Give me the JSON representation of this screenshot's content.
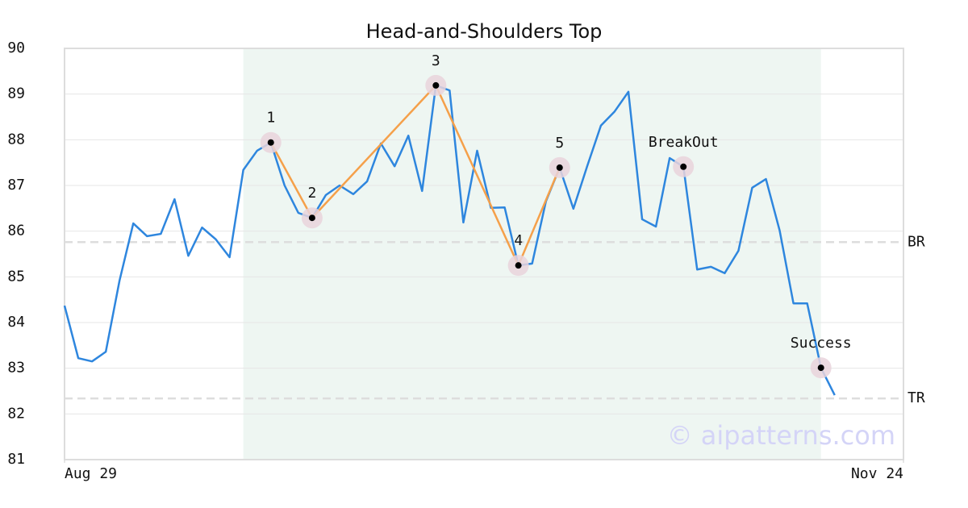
{
  "chart_data": {
    "type": "line",
    "title": "Head-and-Shoulders Top",
    "x": [
      0,
      1,
      2,
      3,
      4,
      5,
      6,
      7,
      8,
      9,
      10,
      11,
      12,
      13,
      14,
      15,
      16,
      17,
      18,
      19,
      20,
      21,
      22,
      23,
      24,
      25,
      26,
      27,
      28,
      29,
      30,
      31,
      32,
      33,
      34,
      35,
      36,
      37,
      38,
      39,
      40,
      41,
      42,
      43,
      44,
      45,
      46,
      47,
      48,
      49,
      50,
      51,
      52,
      53,
      54,
      55,
      56
    ],
    "series": [
      {
        "color": "#2e86de",
        "values": [
          84.37,
          83.22,
          83.15,
          83.36,
          84.92,
          86.17,
          85.89,
          85.94,
          86.7,
          85.46,
          86.08,
          85.82,
          85.43,
          87.34,
          87.76,
          87.94,
          87.0,
          86.4,
          86.29,
          86.79,
          87.0,
          86.81,
          87.09,
          87.92,
          87.42,
          88.09,
          86.88,
          89.19,
          89.08,
          86.19,
          87.76,
          86.51,
          86.52,
          85.25,
          85.29,
          86.65,
          87.39,
          86.49,
          87.42,
          88.31,
          88.62,
          89.05,
          86.26,
          86.1,
          87.6,
          87.41,
          85.16,
          85.22,
          85.08,
          85.57,
          86.95,
          87.14,
          86.01,
          84.42,
          84.42,
          83.01,
          82.41
        ]
      }
    ],
    "pattern_line": {
      "color": "#f5a04a",
      "x": [
        15,
        18,
        27,
        33,
        36
      ],
      "values": [
        87.94,
        86.29,
        89.19,
        85.25,
        87.39
      ]
    },
    "points": [
      {
        "x": 15,
        "y": 87.94,
        "label": "1"
      },
      {
        "x": 18,
        "y": 86.29,
        "label": "2"
      },
      {
        "x": 27,
        "y": 89.19,
        "label": "3"
      },
      {
        "x": 33,
        "y": 85.25,
        "label": "4"
      },
      {
        "x": 36,
        "y": 87.39,
        "label": "5"
      },
      {
        "x": 45,
        "y": 87.41,
        "label": "BreakOut"
      },
      {
        "x": 55,
        "y": 83.01,
        "label": "Success"
      }
    ],
    "levels": [
      {
        "value": 85.76,
        "label": "BR"
      },
      {
        "value": 82.34,
        "label": "TR"
      }
    ],
    "highlight": [
      13,
      55
    ],
    "xlim": [
      0,
      61
    ],
    "xticks": [
      {
        "value": 0,
        "label": "Aug 29"
      },
      {
        "value": 61,
        "label": "Nov 24"
      }
    ],
    "ylim": [
      81,
      90
    ],
    "yticks": [
      81,
      82,
      83,
      84,
      85,
      86,
      87,
      88,
      89,
      90
    ],
    "grid": true,
    "watermark": "© aipatterns.com"
  }
}
